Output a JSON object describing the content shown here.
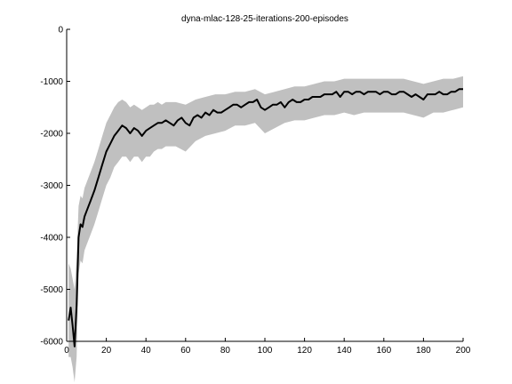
{
  "chart_data": {
    "type": "line",
    "title": "dyna-mlac-128-25-iterations-200-episodes",
    "xlabel": "",
    "ylabel": "",
    "xlim": [
      0,
      200
    ],
    "ylim": [
      -6000,
      0
    ],
    "xticks": [
      0,
      20,
      40,
      60,
      80,
      100,
      120,
      140,
      160,
      180,
      200
    ],
    "yticks": [
      0,
      -1000,
      -2000,
      -3000,
      -4000,
      -5000,
      -6000
    ],
    "grid": false,
    "legend": "none",
    "colors": {
      "mean_line": "#000000",
      "band": "#c0c0c0",
      "axes": "#000000"
    },
    "series": [
      {
        "role": "mean",
        "x": [
          1,
          2,
          3,
          4,
          5,
          6,
          7,
          8,
          9,
          10,
          12,
          14,
          16,
          18,
          20,
          22,
          24,
          26,
          28,
          30,
          32,
          34,
          36,
          38,
          40,
          42,
          44,
          46,
          48,
          50,
          52,
          54,
          56,
          58,
          60,
          62,
          64,
          66,
          68,
          70,
          72,
          74,
          76,
          78,
          80,
          82,
          84,
          86,
          88,
          90,
          92,
          94,
          96,
          98,
          100,
          102,
          104,
          106,
          108,
          110,
          112,
          114,
          116,
          118,
          120,
          122,
          124,
          126,
          128,
          130,
          132,
          134,
          136,
          138,
          140,
          142,
          144,
          146,
          148,
          150,
          152,
          154,
          156,
          158,
          160,
          162,
          164,
          166,
          168,
          170,
          172,
          174,
          176,
          178,
          180,
          182,
          184,
          186,
          188,
          190,
          192,
          194,
          196,
          198,
          200
        ],
        "y": [
          -5600,
          -5350,
          -5700,
          -6100,
          -5300,
          -4000,
          -3750,
          -3800,
          -3600,
          -3500,
          -3300,
          -3100,
          -2850,
          -2600,
          -2350,
          -2200,
          -2050,
          -1950,
          -1850,
          -1900,
          -2000,
          -1900,
          -1950,
          -2050,
          -1950,
          -1900,
          -1850,
          -1800,
          -1800,
          -1750,
          -1800,
          -1850,
          -1750,
          -1700,
          -1800,
          -1850,
          -1700,
          -1650,
          -1700,
          -1600,
          -1650,
          -1550,
          -1600,
          -1600,
          -1550,
          -1500,
          -1450,
          -1450,
          -1500,
          -1450,
          -1400,
          -1400,
          -1350,
          -1500,
          -1550,
          -1500,
          -1450,
          -1450,
          -1400,
          -1500,
          -1400,
          -1350,
          -1400,
          -1400,
          -1350,
          -1350,
          -1300,
          -1300,
          -1300,
          -1250,
          -1250,
          -1250,
          -1200,
          -1300,
          -1200,
          -1200,
          -1250,
          -1200,
          -1200,
          -1250,
          -1200,
          -1200,
          -1200,
          -1250,
          -1200,
          -1200,
          -1250,
          -1250,
          -1200,
          -1200,
          -1250,
          -1300,
          -1250,
          -1300,
          -1350,
          -1250,
          -1250,
          -1250,
          -1200,
          -1250,
          -1250,
          -1200,
          -1200,
          -1150,
          -1150
        ]
      },
      {
        "role": "band-upper",
        "x": [
          1,
          2,
          3,
          4,
          5,
          6,
          7,
          8,
          9,
          10,
          12,
          14,
          16,
          18,
          20,
          22,
          24,
          26,
          28,
          30,
          32,
          34,
          36,
          38,
          40,
          42,
          44,
          46,
          48,
          50,
          55,
          60,
          65,
          70,
          75,
          80,
          85,
          90,
          95,
          100,
          105,
          110,
          115,
          120,
          125,
          130,
          135,
          140,
          145,
          150,
          155,
          160,
          165,
          170,
          175,
          180,
          185,
          190,
          195,
          200
        ],
        "y": [
          -4500,
          -4600,
          -4800,
          -5000,
          -4400,
          -3400,
          -3200,
          -3250,
          -3050,
          -2950,
          -2750,
          -2550,
          -2300,
          -2050,
          -1800,
          -1650,
          -1500,
          -1400,
          -1350,
          -1400,
          -1500,
          -1450,
          -1500,
          -1550,
          -1500,
          -1450,
          -1450,
          -1400,
          -1450,
          -1400,
          -1400,
          -1450,
          -1350,
          -1300,
          -1250,
          -1250,
          -1200,
          -1200,
          -1150,
          -1250,
          -1200,
          -1150,
          -1100,
          -1100,
          -1050,
          -1000,
          -1000,
          -950,
          -950,
          -950,
          -950,
          -950,
          -950,
          -950,
          -1000,
          -1050,
          -1000,
          -950,
          -950,
          -900
        ]
      },
      {
        "role": "band-lower",
        "x": [
          1,
          2,
          3,
          4,
          5,
          6,
          7,
          8,
          9,
          10,
          12,
          14,
          16,
          18,
          20,
          22,
          24,
          26,
          28,
          30,
          32,
          34,
          36,
          38,
          40,
          42,
          44,
          46,
          48,
          50,
          55,
          60,
          65,
          70,
          75,
          80,
          85,
          90,
          95,
          100,
          105,
          110,
          115,
          120,
          125,
          130,
          135,
          140,
          145,
          150,
          155,
          160,
          165,
          170,
          175,
          180,
          185,
          190,
          195,
          200
        ],
        "y": [
          -6300,
          -6300,
          -6500,
          -6900,
          -6300,
          -4700,
          -4450,
          -4500,
          -4250,
          -4150,
          -3950,
          -3750,
          -3500,
          -3250,
          -3000,
          -2850,
          -2650,
          -2550,
          -2450,
          -2450,
          -2550,
          -2450,
          -2450,
          -2550,
          -2450,
          -2450,
          -2350,
          -2300,
          -2300,
          -2250,
          -2250,
          -2350,
          -2150,
          -2050,
          -2000,
          -1950,
          -1850,
          -1850,
          -1800,
          -2000,
          -1900,
          -1800,
          -1750,
          -1750,
          -1700,
          -1650,
          -1650,
          -1600,
          -1650,
          -1600,
          -1600,
          -1600,
          -1600,
          -1600,
          -1650,
          -1700,
          -1600,
          -1600,
          -1550,
          -1500
        ]
      }
    ]
  }
}
